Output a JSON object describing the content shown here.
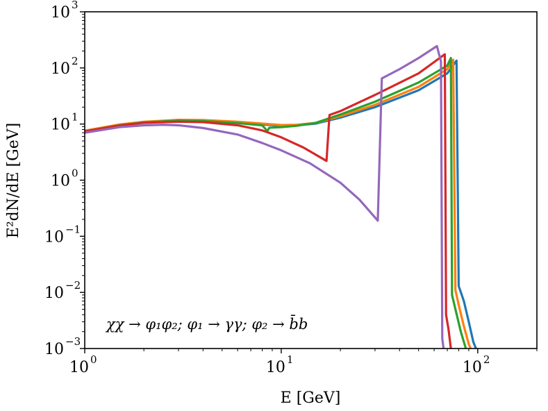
{
  "chart_data": {
    "type": "line",
    "title": "",
    "xlabel": "E [GeV]",
    "ylabel": "E²dN/dE [GeV]",
    "xscale": "log",
    "yscale": "log",
    "xlim": [
      1,
      200
    ],
    "ylim": [
      0.001,
      1000
    ],
    "grid": false,
    "x_ticks": [
      {
        "value": 1,
        "base": "10",
        "exp": "0"
      },
      {
        "value": 10,
        "base": "10",
        "exp": "1"
      },
      {
        "value": 100,
        "base": "10",
        "exp": "2"
      }
    ],
    "y_ticks": [
      {
        "value": 0.001,
        "base": "10",
        "exp": "−3"
      },
      {
        "value": 0.01,
        "base": "10",
        "exp": "−2"
      },
      {
        "value": 0.1,
        "base": "10",
        "exp": "−1"
      },
      {
        "value": 1,
        "base": "10",
        "exp": "0"
      },
      {
        "value": 10,
        "base": "10",
        "exp": "1"
      },
      {
        "value": 100,
        "base": "10",
        "exp": "2"
      },
      {
        "value": 1000,
        "base": "10",
        "exp": "3"
      }
    ],
    "annotation": "χχ → φ₁φ₂; φ₁ → γγ; φ₂ → b̄b",
    "series": [
      {
        "name": "series-blue",
        "color": "#1f77b4",
        "points": [
          [
            1,
            7.5
          ],
          [
            1.5,
            9.5
          ],
          [
            2,
            10.8
          ],
          [
            3,
            11.6
          ],
          [
            4,
            11.5
          ],
          [
            6,
            10.6
          ],
          [
            8,
            9.8
          ],
          [
            10,
            9.4
          ],
          [
            12,
            9.5
          ],
          [
            15,
            10.2
          ],
          [
            20,
            13
          ],
          [
            30,
            20
          ],
          [
            50,
            40
          ],
          [
            70,
            80
          ],
          [
            78,
            135
          ],
          [
            80,
            0.013
          ],
          [
            85,
            0.007
          ],
          [
            90,
            0.003
          ],
          [
            95,
            0.0013
          ],
          [
            98,
            0.001
          ]
        ]
      },
      {
        "name": "series-orange",
        "color": "#ff7f0e",
        "points": [
          [
            1,
            7.6
          ],
          [
            1.5,
            9.8
          ],
          [
            2,
            11
          ],
          [
            3,
            11.9
          ],
          [
            4,
            11.8
          ],
          [
            6,
            11
          ],
          [
            8,
            10.2
          ],
          [
            10,
            9.6
          ],
          [
            12,
            9.7
          ],
          [
            15,
            10.5
          ],
          [
            20,
            13.8
          ],
          [
            30,
            22
          ],
          [
            50,
            46
          ],
          [
            70,
            95
          ],
          [
            75,
            140
          ],
          [
            77,
            0.011
          ],
          [
            80,
            0.006
          ],
          [
            85,
            0.0025
          ],
          [
            90,
            0.0012
          ],
          [
            92,
            0.001
          ]
        ]
      },
      {
        "name": "series-green",
        "color": "#2ca02c",
        "points": [
          [
            1,
            7.4
          ],
          [
            1.5,
            9.5
          ],
          [
            2,
            10.7
          ],
          [
            3,
            11.5
          ],
          [
            4,
            11.3
          ],
          [
            6,
            10.4
          ],
          [
            8,
            9.5
          ],
          [
            8.5,
            7.5
          ],
          [
            8.7,
            8.6
          ],
          [
            10,
            8.8
          ],
          [
            12,
            9.3
          ],
          [
            15,
            10.5
          ],
          [
            20,
            14.8
          ],
          [
            30,
            25
          ],
          [
            50,
            55
          ],
          [
            70,
            110
          ],
          [
            73,
            150
          ],
          [
            74,
            0.009
          ],
          [
            77,
            0.005
          ],
          [
            82,
            0.002
          ],
          [
            87,
            0.001
          ]
        ]
      },
      {
        "name": "series-red",
        "color": "#d62728",
        "points": [
          [
            1,
            7.4
          ],
          [
            1.5,
            9.4
          ],
          [
            2,
            10.5
          ],
          [
            3,
            11
          ],
          [
            4,
            10.8
          ],
          [
            6,
            9.5
          ],
          [
            8,
            7.7
          ],
          [
            10,
            5.8
          ],
          [
            13,
            3.8
          ],
          [
            17,
            2.2
          ],
          [
            17.6,
            14.5
          ],
          [
            20,
            17
          ],
          [
            30,
            33
          ],
          [
            50,
            80
          ],
          [
            68,
            175
          ],
          [
            69,
            0.004
          ],
          [
            71,
            0.0022
          ],
          [
            73,
            0.001
          ]
        ]
      },
      {
        "name": "series-purple",
        "color": "#9467bd",
        "points": [
          [
            1,
            7
          ],
          [
            1.5,
            8.8
          ],
          [
            2,
            9.5
          ],
          [
            2.5,
            9.7
          ],
          [
            3,
            9.5
          ],
          [
            4,
            8.5
          ],
          [
            6,
            6.5
          ],
          [
            8,
            4.6
          ],
          [
            10,
            3.4
          ],
          [
            14,
            2
          ],
          [
            20,
            0.9
          ],
          [
            25,
            0.45
          ],
          [
            31,
            0.19
          ],
          [
            32.5,
            65
          ],
          [
            40,
            95
          ],
          [
            50,
            150
          ],
          [
            62,
            245
          ],
          [
            65,
            130
          ],
          [
            66,
            0.0015
          ],
          [
            67,
            0.001
          ]
        ]
      }
    ]
  }
}
